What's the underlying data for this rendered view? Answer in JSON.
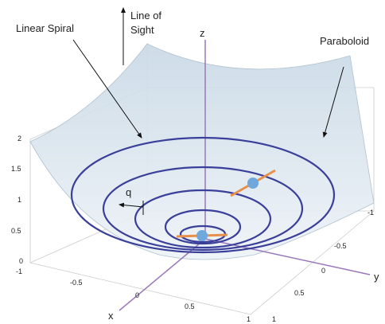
{
  "annotations": {
    "spiral": "Linear Spiral",
    "sight_line1": "Line of",
    "sight_line2": "Sight",
    "paraboloid": "Paraboloid",
    "angle": "q"
  },
  "axes": {
    "z": "z",
    "x": "x",
    "y": "y"
  },
  "z_ticks": [
    "0",
    "0.5",
    "1",
    "1.5",
    "2"
  ],
  "x_ticks": [
    "-1",
    "-0.5",
    "0",
    "0.5",
    "1"
  ],
  "y_ticks": [
    "-1",
    "-0.5",
    "0",
    "0.5",
    "1"
  ]
}
